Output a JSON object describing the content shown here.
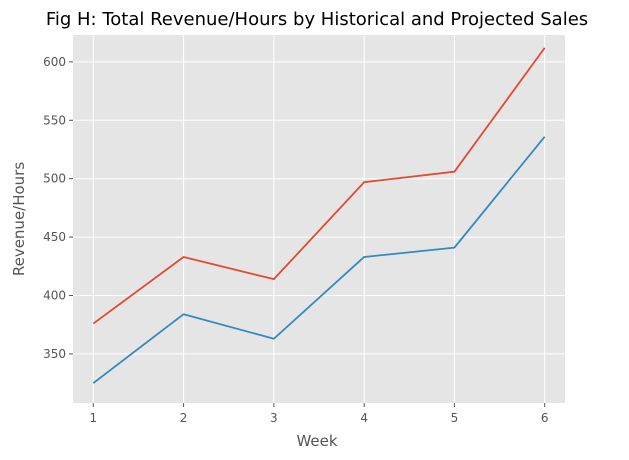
{
  "chart_data": {
    "type": "line",
    "title": "Fig H: Total Revenue/Hours by Historical and Projected Sales",
    "xlabel": "Week",
    "ylabel": "Revenue/Hours",
    "x": [
      1,
      2,
      3,
      4,
      5,
      6
    ],
    "xticks": [
      "1",
      "2",
      "3",
      "4",
      "5",
      "6"
    ],
    "yticks": [
      350,
      400,
      450,
      500,
      550,
      600
    ],
    "ylim": [
      308,
      623
    ],
    "grid": true,
    "background": "#E5E5E5",
    "series": [
      {
        "color": "#E24A33",
        "values": [
          376,
          433,
          414,
          497,
          506,
          612
        ]
      },
      {
        "color": "#348ABD",
        "values": [
          325,
          384,
          363,
          433,
          441,
          536
        ]
      }
    ]
  }
}
